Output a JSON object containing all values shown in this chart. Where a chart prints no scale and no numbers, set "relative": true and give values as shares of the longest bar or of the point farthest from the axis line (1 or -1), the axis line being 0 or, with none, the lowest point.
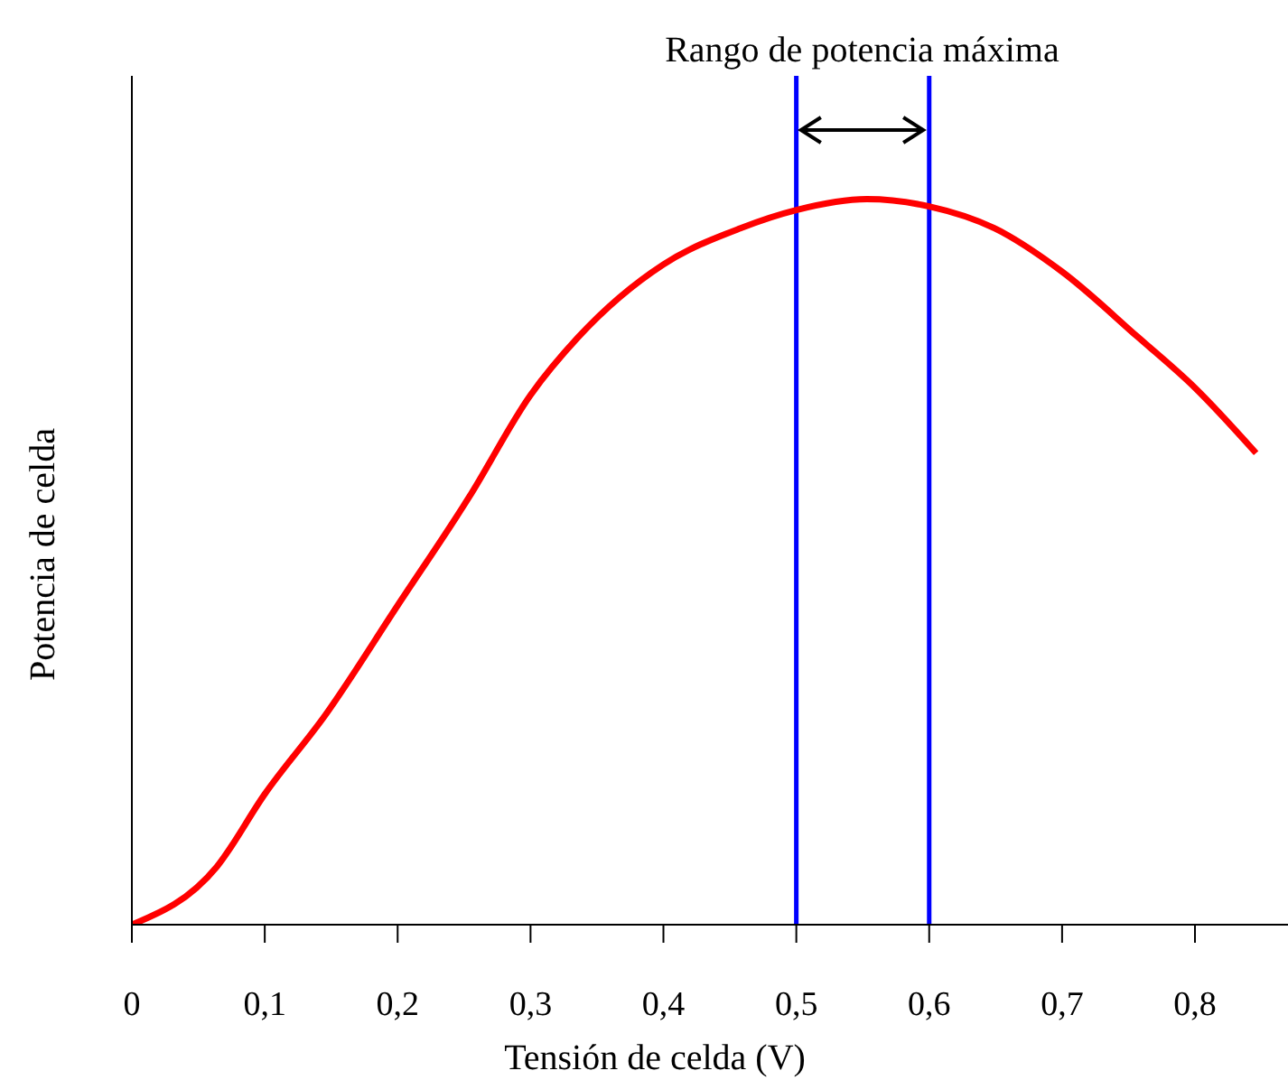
{
  "chart_data": {
    "type": "line",
    "relative": true,
    "xlabel": "Tensión de celda (V)",
    "ylabel": "Potencia de celda",
    "xlim": [
      0,
      0.87
    ],
    "xticks": [
      0,
      {
        "value": 0.1,
        "label": "0,1"
      },
      {
        "value": 0.2,
        "label": "0,2"
      },
      {
        "value": 0.3,
        "label": "0,3"
      },
      {
        "value": 0.4,
        "label": "0,4"
      },
      {
        "value": 0.5,
        "label": "0,5"
      },
      {
        "value": 0.6,
        "label": "0,6"
      },
      {
        "value": 0.7,
        "label": "0,7"
      },
      {
        "value": 0.8,
        "label": "0,8"
      }
    ],
    "x": [
      0,
      0.064,
      0.1,
      0.146,
      0.2,
      0.254,
      0.3,
      0.336,
      0.4,
      0.458,
      0.5,
      0.553,
      0.6,
      0.649,
      0.7,
      0.757,
      0.8,
      0.846
    ],
    "series": [
      {
        "color": "#ff0000",
        "values": [
          0,
          0.08,
          0.18,
          0.29,
          0.44,
          0.59,
          0.73,
          0.81,
          0.91,
          0.96,
          0.985,
          1,
          0.99,
          0.96,
          0.9,
          0.81,
          0.74,
          0.65
        ]
      }
    ],
    "ref_lines": [
      {
        "axis": "x",
        "value": 0.5,
        "color": "#0000ff"
      },
      {
        "axis": "x",
        "value": 0.6,
        "color": "#0000ff"
      }
    ],
    "annotations": [
      "Rango de potencia máxima"
    ],
    "grid": false,
    "legend": false,
    "marker": "none",
    "line_style": "solid"
  }
}
